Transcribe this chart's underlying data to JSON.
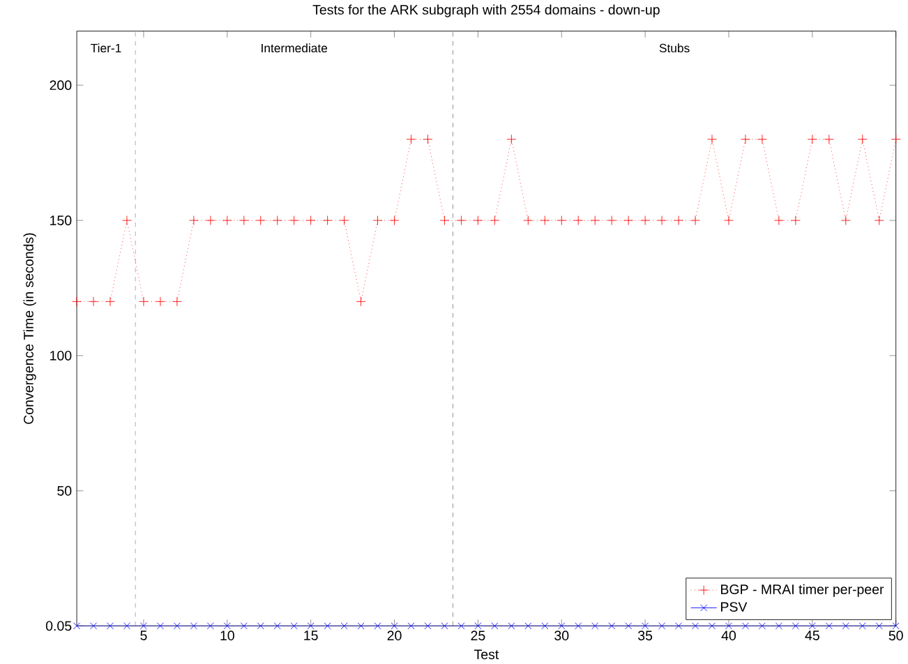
{
  "chart_data": {
    "type": "line",
    "title": "Tests for the ARK subgraph with 2554 domains - down-up",
    "xlabel": "Test",
    "ylabel": "Convergence Time (in seconds)",
    "x": [
      1,
      2,
      3,
      4,
      5,
      6,
      7,
      8,
      9,
      10,
      11,
      12,
      13,
      14,
      15,
      16,
      17,
      18,
      19,
      20,
      21,
      22,
      23,
      24,
      25,
      26,
      27,
      28,
      29,
      30,
      31,
      32,
      33,
      34,
      35,
      36,
      37,
      38,
      39,
      40,
      41,
      42,
      43,
      44,
      45,
      46,
      47,
      48,
      49,
      50
    ],
    "series": [
      {
        "name": "BGP - MRAI timer per-peer",
        "color": "#ff0000",
        "marker": "plus",
        "line_style": "dotted",
        "values": [
          120,
          120,
          120,
          150,
          120,
          120,
          120,
          150,
          150,
          150,
          150,
          150,
          150,
          150,
          150,
          150,
          150,
          120,
          150,
          150,
          180,
          180,
          150,
          150,
          150,
          150,
          180,
          150,
          150,
          150,
          150,
          150,
          150,
          150,
          150,
          150,
          150,
          150,
          180,
          150,
          180,
          180,
          150,
          150,
          180,
          180,
          150,
          180,
          150,
          180
        ]
      },
      {
        "name": "PSV",
        "color": "#0000ff",
        "marker": "cross",
        "line_style": "solid",
        "values": [
          0.05,
          0.05,
          0.05,
          0.05,
          0.05,
          0.05,
          0.05,
          0.05,
          0.05,
          0.05,
          0.05,
          0.05,
          0.05,
          0.05,
          0.05,
          0.05,
          0.05,
          0.05,
          0.05,
          0.05,
          0.05,
          0.05,
          0.05,
          0.05,
          0.05,
          0.05,
          0.05,
          0.05,
          0.05,
          0.05,
          0.05,
          0.05,
          0.05,
          0.05,
          0.05,
          0.05,
          0.05,
          0.05,
          0.05,
          0.05,
          0.05,
          0.05,
          0.05,
          0.05,
          0.05,
          0.05,
          0.05,
          0.05,
          0.05,
          0.05
        ]
      }
    ],
    "xlim": [
      1,
      50
    ],
    "ylim": [
      0.05,
      220
    ],
    "xticks": [
      5,
      10,
      15,
      20,
      25,
      30,
      35,
      40,
      45,
      50
    ],
    "yticks": [
      0.05,
      50,
      100,
      150,
      200
    ],
    "ref_lines": [
      {
        "axis": "x",
        "value": 4.5,
        "color": "#808080",
        "line_style": "dashed"
      },
      {
        "axis": "x",
        "value": 23.5,
        "color": "#808080",
        "line_style": "dashed"
      }
    ],
    "annotations": [
      "Tier-1",
      "Intermediate",
      "Stubs"
    ],
    "legend": "bottom right",
    "grid": false
  }
}
